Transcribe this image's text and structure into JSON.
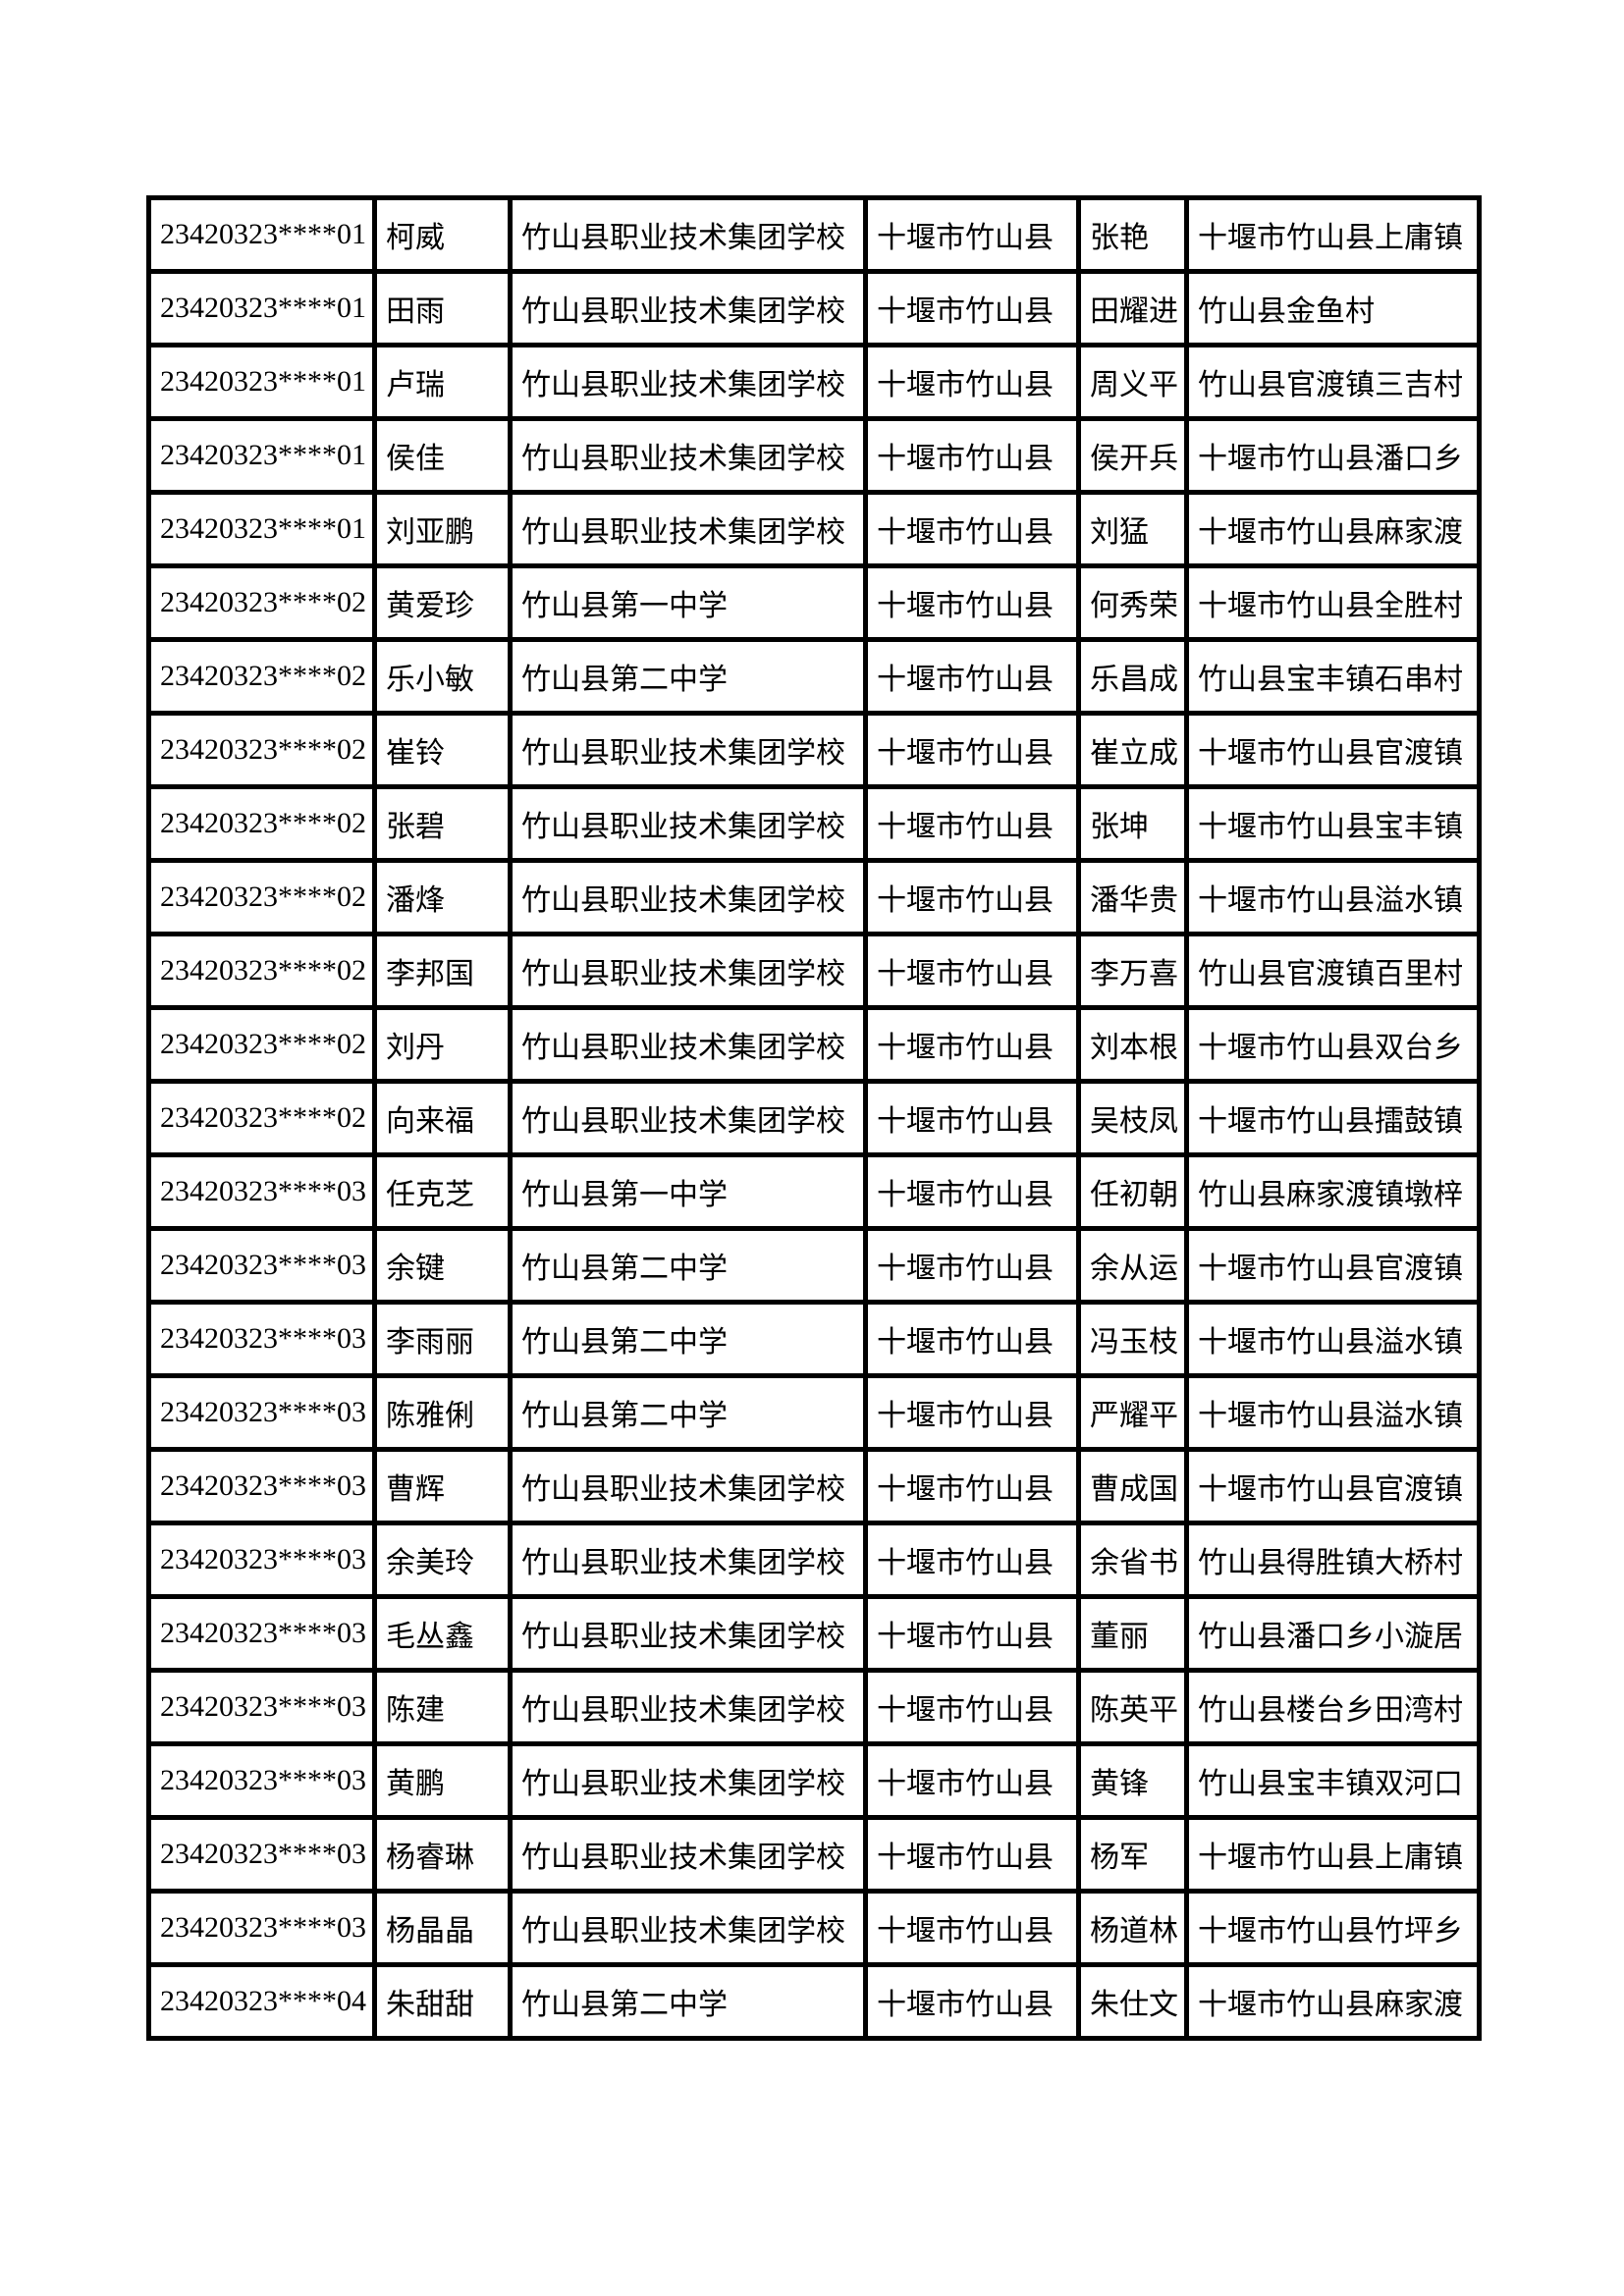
{
  "page": {
    "background_color": "#ffffff",
    "text_color": "#000000",
    "border_color": "#000000"
  },
  "table": {
    "rows": [
      [
        "23420323****01",
        "柯威",
        "竹山县职业技术集团学校",
        "十堰市竹山县",
        "张艳",
        "十堰市竹山县上庸镇"
      ],
      [
        "23420323****01",
        "田雨",
        "竹山县职业技术集团学校",
        "十堰市竹山县",
        "田耀进",
        "竹山县金鱼村"
      ],
      [
        "23420323****01",
        "卢瑞",
        "竹山县职业技术集团学校",
        "十堰市竹山县",
        "周义平",
        "竹山县官渡镇三吉村"
      ],
      [
        "23420323****01",
        "侯佳",
        "竹山县职业技术集团学校",
        "十堰市竹山县",
        "侯开兵",
        "十堰市竹山县潘口乡"
      ],
      [
        "23420323****01",
        "刘亚鹏",
        "竹山县职业技术集团学校",
        "十堰市竹山县",
        "刘猛",
        "十堰市竹山县麻家渡"
      ],
      [
        "23420323****02",
        "黄爱珍",
        "竹山县第一中学",
        "十堰市竹山县",
        "何秀荣",
        "十堰市竹山县全胜村"
      ],
      [
        "23420323****02",
        "乐小敏",
        "竹山县第二中学",
        "十堰市竹山县",
        "乐昌成",
        "竹山县宝丰镇石串村"
      ],
      [
        "23420323****02",
        "崔铃",
        "竹山县职业技术集团学校",
        "十堰市竹山县",
        "崔立成",
        "十堰市竹山县官渡镇"
      ],
      [
        "23420323****02",
        "张碧",
        "竹山县职业技术集团学校",
        "十堰市竹山县",
        "张坤",
        "十堰市竹山县宝丰镇"
      ],
      [
        "23420323****02",
        "潘烽",
        "竹山县职业技术集团学校",
        "十堰市竹山县",
        "潘华贵",
        "十堰市竹山县溢水镇"
      ],
      [
        "23420323****02",
        "李邦国",
        "竹山县职业技术集团学校",
        "十堰市竹山县",
        "李万喜",
        "竹山县官渡镇百里村"
      ],
      [
        "23420323****02",
        "刘丹",
        "竹山县职业技术集团学校",
        "十堰市竹山县",
        "刘本根",
        "十堰市竹山县双台乡"
      ],
      [
        "23420323****02",
        "向来福",
        "竹山县职业技术集团学校",
        "十堰市竹山县",
        "吴枝凤",
        "十堰市竹山县擂鼓镇"
      ],
      [
        "23420323****03",
        "任克芝",
        "竹山县第一中学",
        "十堰市竹山县",
        "任初朝",
        "竹山县麻家渡镇墩梓"
      ],
      [
        "23420323****03",
        "余键",
        "竹山县第二中学",
        "十堰市竹山县",
        "余从运",
        "十堰市竹山县官渡镇"
      ],
      [
        "23420323****03",
        "李雨丽",
        "竹山县第二中学",
        "十堰市竹山县",
        "冯玉枝",
        "十堰市竹山县溢水镇"
      ],
      [
        "23420323****03",
        "陈雅俐",
        "竹山县第二中学",
        "十堰市竹山县",
        "严耀平",
        "十堰市竹山县溢水镇"
      ],
      [
        "23420323****03",
        "曹辉",
        "竹山县职业技术集团学校",
        "十堰市竹山县",
        "曹成国",
        "十堰市竹山县官渡镇"
      ],
      [
        "23420323****03",
        "余美玲",
        "竹山县职业技术集团学校",
        "十堰市竹山县",
        "余省书",
        "竹山县得胜镇大桥村"
      ],
      [
        "23420323****03",
        "毛丛鑫",
        "竹山县职业技术集团学校",
        "十堰市竹山县",
        "董丽",
        "竹山县潘口乡小漩居"
      ],
      [
        "23420323****03",
        "陈建",
        "竹山县职业技术集团学校",
        "十堰市竹山县",
        "陈英平",
        "竹山县楼台乡田湾村"
      ],
      [
        "23420323****03",
        "黄鹏",
        "竹山县职业技术集团学校",
        "十堰市竹山县",
        "黄锋",
        "竹山县宝丰镇双河口"
      ],
      [
        "23420323****03",
        "杨睿琳",
        "竹山县职业技术集团学校",
        "十堰市竹山县",
        "杨军",
        "十堰市竹山县上庸镇"
      ],
      [
        "23420323****03",
        "杨晶晶",
        "竹山县职业技术集团学校",
        "十堰市竹山县",
        "杨道林",
        "十堰市竹山县竹坪乡"
      ],
      [
        "23420323****04",
        "朱甜甜",
        "竹山县第二中学",
        "十堰市竹山县",
        "朱仕文",
        "十堰市竹山县麻家渡"
      ]
    ]
  }
}
